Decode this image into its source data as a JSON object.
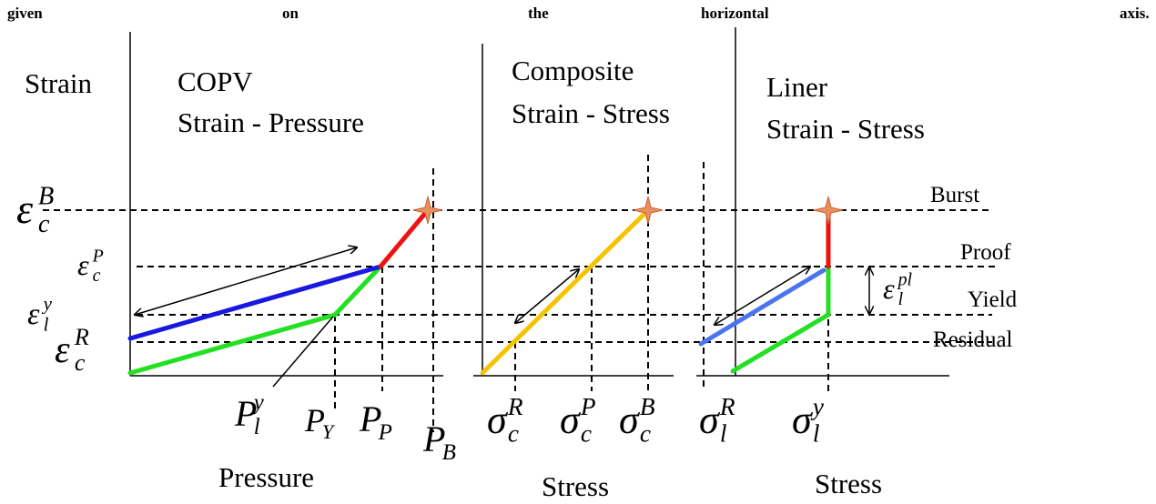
{
  "top_line": [
    "given",
    "on",
    "the",
    "horizontal",
    "axis."
  ],
  "y_axis_label": "Strain",
  "panels": [
    {
      "title": [
        "COPV",
        "Strain - Pressure"
      ],
      "x_label": "Pressure"
    },
    {
      "title": [
        "Composite",
        "Strain - Stress"
      ],
      "x_label": "Stress"
    },
    {
      "title": [
        "Liner",
        "Strain - Stress"
      ],
      "x_label": "Stress"
    }
  ],
  "levels": [
    "Burst",
    "Proof",
    "Yield",
    "Residual"
  ],
  "symbols": [
    {
      "base": "ε",
      "sub": "c",
      "sup": "B"
    },
    {
      "base": "ε",
      "sub": "c",
      "sup": "P"
    },
    {
      "base": "ε",
      "sub": "l",
      "sup": "y"
    },
    {
      "base": "ε",
      "sub": "c",
      "sup": "R"
    },
    {
      "base": "P",
      "sub": "l",
      "sup": "y"
    },
    {
      "base": "P",
      "sub": "Y"
    },
    {
      "base": "P",
      "sub": "P"
    },
    {
      "base": "P",
      "sub": "B"
    },
    {
      "base": "σ",
      "sub": "c",
      "sup": "R"
    },
    {
      "base": "σ",
      "sub": "c",
      "sup": "P"
    },
    {
      "base": "σ",
      "sub": "c",
      "sup": "B"
    },
    {
      "base": "σ",
      "sub": "l",
      "sup": "R"
    },
    {
      "base": "σ",
      "sub": "l",
      "sup": "y"
    },
    {
      "base": "ε",
      "sub": "l",
      "sup": "pl"
    }
  ]
}
